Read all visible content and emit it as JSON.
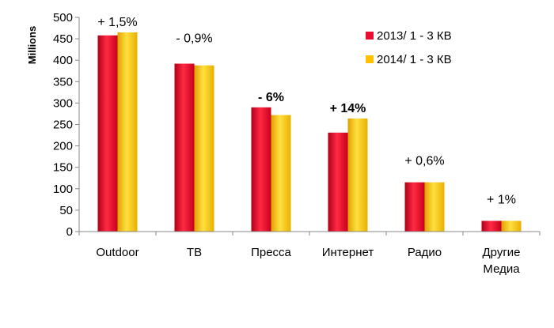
{
  "chart_data": {
    "type": "bar",
    "title": "",
    "xlabel": "",
    "ylabel": "Millions",
    "ylim": [
      0,
      500
    ],
    "yticks": [
      0,
      50,
      100,
      150,
      200,
      250,
      300,
      350,
      400,
      450,
      500
    ],
    "grid": false,
    "legend_position": "top-right",
    "categories": [
      "Outdoor",
      "ТВ",
      "Пресса",
      "Интернет",
      "Радио",
      "Другие Медиа"
    ],
    "series": [
      {
        "name": "2013/ 1 - 3 КВ",
        "color": "#e8102e",
        "values": [
          458,
          392,
          290,
          231,
          115,
          25
        ]
      },
      {
        "name": "2014/ 1 - 3 КВ",
        "color": "#fcc200",
        "values": [
          465,
          388,
          272,
          264,
          115,
          25
        ]
      }
    ],
    "annotations": [
      {
        "text": "+ 1,5%",
        "bold": false
      },
      {
        "text": "- 0,9%",
        "bold": false
      },
      {
        "text": "- 6%",
        "bold": true
      },
      {
        "text": "+ 14%",
        "bold": true
      },
      {
        "text": "+ 0,6%",
        "bold": false
      },
      {
        "text": "+ 1%",
        "bold": false
      }
    ]
  }
}
